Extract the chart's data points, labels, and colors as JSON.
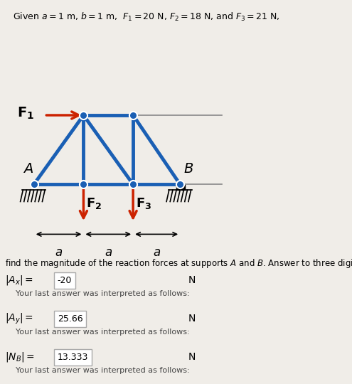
{
  "title_text": "Given $a = 1$ m, $b = 1$ m,  $F_1 = 20$ N, $F_2 = 18$ N, and $F_3 = 21$ N,",
  "background_color": "#f0ede8",
  "truss_color": "#1a5fb4",
  "arrow_color": "#cc2200",
  "node_color": "#1a5fb4",
  "node_edge_color": "#ffffff",
  "text_color": "#000000",
  "question_text": "find the magnitude of the reaction forces at supports $A$ and $B$. Answer to three digits.",
  "ax_label": "|A_x| =",
  "ax_value": "-20",
  "ay_label": "|A_y| =",
  "ay_value": "25.66",
  "nb_label": "|N_B| =",
  "nb_value": "13.333",
  "unit": "N",
  "interp_text": "Your last answer was interpreted as follows:"
}
